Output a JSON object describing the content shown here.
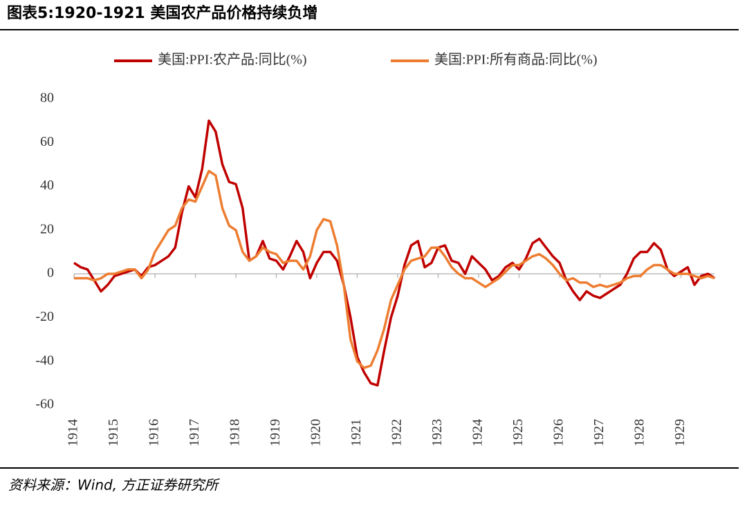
{
  "chart_data": {
    "type": "line",
    "title": "图表5:1920-1921 美国农产品价格持续负增",
    "source": "资料来源：Wind, 方正证券研究所",
    "categories": [
      "1914",
      null,
      null,
      null,
      null,
      null,
      "1915",
      null,
      null,
      null,
      null,
      null,
      "1916",
      null,
      null,
      null,
      null,
      null,
      "1917",
      null,
      null,
      null,
      null,
      null,
      "1918",
      null,
      null,
      null,
      null,
      null,
      "1919",
      null,
      null,
      null,
      null,
      null,
      "1920",
      null,
      null,
      null,
      null,
      null,
      "1921",
      null,
      null,
      null,
      null,
      null,
      "1922",
      null,
      null,
      null,
      null,
      null,
      "1923",
      null,
      null,
      null,
      null,
      null,
      "1924",
      null,
      null,
      null,
      null,
      null,
      "1925",
      null,
      null,
      null,
      null,
      null,
      "1926",
      null,
      null,
      null,
      null,
      null,
      "1927",
      null,
      null,
      null,
      null,
      null,
      "1928",
      null,
      null,
      null,
      null,
      null,
      "1929",
      null,
      null,
      null,
      null,
      null
    ],
    "series": [
      {
        "name": "美国:PPI:农产品:同比(%)",
        "color": "#c00000",
        "values": [
          5,
          3,
          2,
          -3,
          -8,
          -5,
          -1,
          0,
          1,
          2,
          -1,
          3,
          4,
          6,
          8,
          12,
          28,
          40,
          35,
          48,
          70,
          65,
          50,
          42,
          41,
          30,
          6,
          8,
          15,
          7,
          6,
          2,
          8,
          15,
          10,
          -2,
          5,
          10,
          10,
          6,
          -5,
          -20,
          -38,
          -45,
          -50,
          -51,
          -35,
          -20,
          -10,
          4,
          13,
          15,
          3,
          5,
          12,
          13,
          6,
          5,
          0,
          8,
          5,
          2,
          -3,
          -1,
          3,
          5,
          2,
          7,
          14,
          16,
          12,
          8,
          5,
          -3,
          -8,
          -12,
          -8,
          -10,
          -11,
          -9,
          -7,
          -5,
          0,
          7,
          10,
          10,
          14,
          11,
          2,
          -1,
          1,
          3,
          -5,
          -1,
          0,
          -2
        ]
      },
      {
        "name": "美国:PPI:所有商品:同比(%)",
        "color": "#ed7d31",
        "values": [
          -2,
          -2,
          -2,
          -3,
          -2,
          0,
          0,
          1,
          2,
          2,
          -2,
          2,
          10,
          15,
          20,
          22,
          30,
          34,
          33,
          40,
          47,
          45,
          30,
          22,
          20,
          10,
          6,
          8,
          12,
          10,
          9,
          5,
          6,
          6,
          2,
          8,
          20,
          25,
          24,
          13,
          -5,
          -30,
          -40,
          -43,
          -42,
          -35,
          -25,
          -12,
          -5,
          2,
          6,
          7,
          8,
          12,
          12,
          8,
          3,
          0,
          -2,
          -2,
          -4,
          -6,
          -4,
          -2,
          1,
          4,
          4,
          6,
          8,
          9,
          7,
          4,
          0,
          -3,
          -2,
          -4,
          -4,
          -6,
          -5,
          -6,
          -5,
          -4,
          -2,
          -1,
          -1,
          2,
          4,
          4,
          2,
          0,
          0,
          0,
          -1,
          -2,
          -1,
          -2
        ]
      }
    ],
    "ylim": [
      -60,
      80
    ],
    "yticks": [
      -60,
      -40,
      -20,
      0,
      20,
      40,
      60,
      80
    ],
    "legend": "top"
  }
}
